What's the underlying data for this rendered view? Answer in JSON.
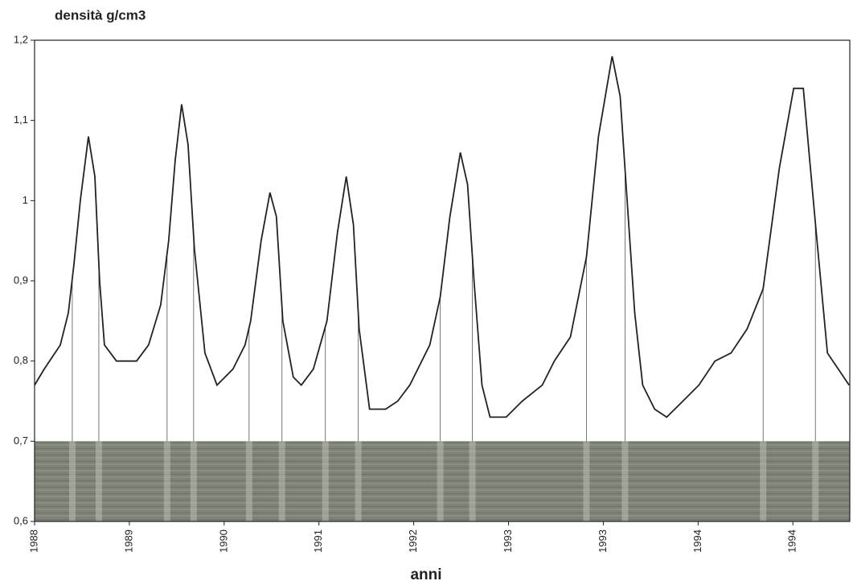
{
  "chart_data": {
    "type": "line",
    "title": "densità g/cm3",
    "x_label": "anni",
    "xlim": [
      0,
      8.6
    ],
    "xticks": [
      {
        "value": 0,
        "label": "1988"
      },
      {
        "value": 1,
        "label": "1989"
      },
      {
        "value": 2,
        "label": "1990"
      },
      {
        "value": 3,
        "label": "1991"
      },
      {
        "value": 4,
        "label": "1992"
      },
      {
        "value": 5,
        "label": "1993"
      },
      {
        "value": 6,
        "label": "1993"
      },
      {
        "value": 7,
        "label": "1994"
      },
      {
        "value": 8,
        "label": "1994"
      }
    ],
    "ylim": [
      0.6,
      1.2
    ],
    "yticks": [
      {
        "value": 0.6,
        "label": "0,6"
      },
      {
        "value": 0.7,
        "label": "0,7"
      },
      {
        "value": 0.8,
        "label": "0,8"
      },
      {
        "value": 0.9,
        "label": "0,9"
      },
      1,
      {
        "value": 1.1,
        "label": "1,1"
      },
      {
        "value": 1.2,
        "label": "1,2"
      }
    ],
    "color": "#222222",
    "x": [
      0,
      0.102,
      0.271,
      0.356,
      0.415,
      0.483,
      0.568,
      0.636,
      0.686,
      0.737,
      0.864,
      1.076,
      1.203,
      1.331,
      1.415,
      1.483,
      1.551,
      1.619,
      1.686,
      1.797,
      1.924,
      2.093,
      2.22,
      2.28,
      2.39,
      2.483,
      2.551,
      2.619,
      2.729,
      2.814,
      2.941,
      3.085,
      3.195,
      3.288,
      3.364,
      3.424,
      3.534,
      3.703,
      3.831,
      3.958,
      4.169,
      4.28,
      4.381,
      4.492,
      4.568,
      4.636,
      4.72,
      4.805,
      4.975,
      5.144,
      5.356,
      5.483,
      5.653,
      5.822,
      5.949,
      6.093,
      6.178,
      6.246,
      6.331,
      6.415,
      6.542,
      6.669,
      6.839,
      7.008,
      7.178,
      7.347,
      7.517,
      7.686,
      7.856,
      8.008,
      8.11,
      8.178,
      8.246,
      8.364,
      8.593
    ],
    "values": [
      0.77,
      0.79,
      0.82,
      0.86,
      0.92,
      1.0,
      1.08,
      1.03,
      0.9,
      0.82,
      0.8,
      0.8,
      0.82,
      0.87,
      0.95,
      1.05,
      1.12,
      1.07,
      0.94,
      0.81,
      0.77,
      0.79,
      0.82,
      0.85,
      0.95,
      1.01,
      0.98,
      0.85,
      0.78,
      0.77,
      0.79,
      0.85,
      0.96,
      1.03,
      0.97,
      0.84,
      0.74,
      0.74,
      0.75,
      0.77,
      0.82,
      0.88,
      0.98,
      1.06,
      1.02,
      0.9,
      0.77,
      0.73,
      0.73,
      0.75,
      0.77,
      0.8,
      0.83,
      0.93,
      1.08,
      1.18,
      1.13,
      1.01,
      0.86,
      0.77,
      0.74,
      0.73,
      0.75,
      0.77,
      0.8,
      0.81,
      0.84,
      0.89,
      1.04,
      1.14,
      1.14,
      1.05,
      0.96,
      0.81,
      0.77
    ],
    "boundaries": [
      0.398,
      0.678,
      1.398,
      1.678,
      2.263,
      2.61,
      3.068,
      3.415,
      4.28,
      4.619,
      5.822,
      6.229,
      7.686,
      8.237
    ]
  }
}
